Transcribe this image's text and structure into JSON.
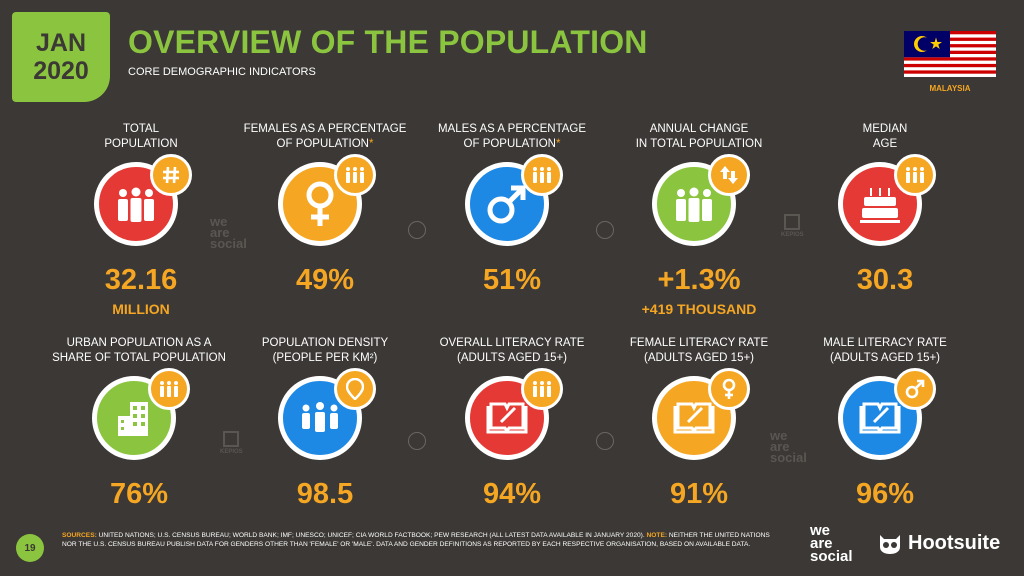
{
  "header": {
    "month": "JAN",
    "year": "2020",
    "title": "OVERVIEW OF THE POPULATION",
    "subtitle": "CORE DEMOGRAPHIC INDICATORS",
    "country": "MALAYSIA"
  },
  "colors": {
    "green": "#8bc53f",
    "orange": "#f5a623",
    "red": "#e53935",
    "blue": "#1e88e5",
    "background": "#3b3835"
  },
  "stats": [
    {
      "label1": "TOTAL",
      "label2": "POPULATION",
      "value": "32.16",
      "sub": "MILLION",
      "icon": "people-icon",
      "badge": "hash-icon",
      "color": "red"
    },
    {
      "label1": "FEMALES AS A PERCENTAGE",
      "label2": "OF POPULATION",
      "asterisk": "*",
      "value": "49%",
      "icon": "female-icon",
      "badge": "people-icon",
      "color": "orange"
    },
    {
      "label1": "MALES AS A PERCENTAGE",
      "label2": "OF POPULATION",
      "asterisk": "*",
      "value": "51%",
      "icon": "male-icon",
      "badge": "people-icon",
      "color": "blue"
    },
    {
      "label1": "ANNUAL CHANGE",
      "label2": "IN TOTAL POPULATION",
      "value": "+1.3%",
      "sub": "+419 THOUSAND",
      "icon": "people-icon",
      "badge": "arrows-icon",
      "color": "green"
    },
    {
      "label1": "MEDIAN",
      "label2": "AGE",
      "value": "30.3",
      "icon": "cake-icon",
      "badge": "people-icon",
      "color": "red"
    },
    {
      "label1": "URBAN POPULATION AS A",
      "label2": "SHARE OF TOTAL POPULATION",
      "value": "76%",
      "icon": "building-icon",
      "badge": "people-icon",
      "color": "green"
    },
    {
      "label1": "POPULATION DENSITY",
      "label2": "(PEOPLE PER KM²)",
      "value": "98.5",
      "icon": "crowd-icon",
      "badge": "pin-icon",
      "color": "blue"
    },
    {
      "label1": "OVERALL LITERACY RATE",
      "label2": "(ADULTS AGED 15+)",
      "value": "94%",
      "icon": "book-icon",
      "badge": "people-icon",
      "color": "red"
    },
    {
      "label1": "FEMALE LITERACY RATE",
      "label2": "(ADULTS AGED 15+)",
      "value": "91%",
      "icon": "book-icon",
      "badge": "female-icon",
      "color": "orange"
    },
    {
      "label1": "MALE LITERACY RATE",
      "label2": "(ADULTS AGED 15+)",
      "value": "96%",
      "icon": "book-icon",
      "badge": "male-icon",
      "color": "blue"
    }
  ],
  "watermarks": {
    "we": "we",
    "are": "are",
    "social": "social",
    "kepios": "KEPIOS"
  },
  "footer": {
    "page": "19",
    "sources_label": "SOURCES:",
    "sources_text": " UNITED NATIONS; U.S. CENSUS BUREAU; WORLD BANK; IMF; UNESCO; UNICEF; CIA WORLD FACTBOOK; PEW RESEARCH (ALL LATEST DATA AVAILABLE IN JANUARY 2020). ",
    "note_label": "NOTE:",
    "note_text": " NEITHER THE UNITED NATIONS NOR THE U.S. CENSUS BUREAU PUBLISH DATA FOR GENDERS OTHER THAN 'FEMALE' OR 'MALE'. DATA AND GENDER DEFINITIONS AS REPORTED BY EACH RESPECTIVE ORGANISATION, BASED ON AVAILABLE DATA.",
    "brand_we": "we",
    "brand_are": "are",
    "brand_social": "social",
    "brand_hootsuite": "Hootsuite"
  }
}
